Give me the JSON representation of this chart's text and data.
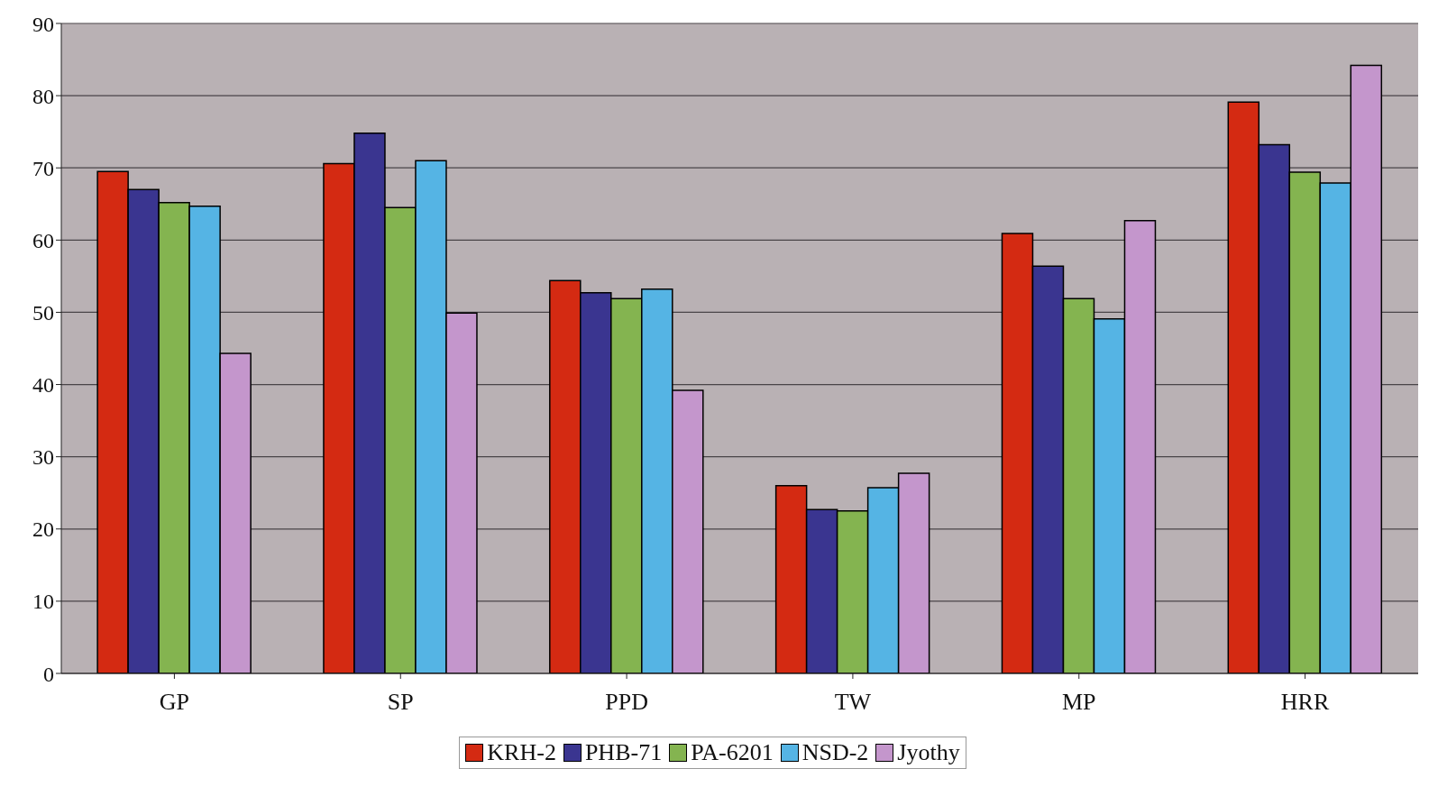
{
  "chart_data": {
    "type": "bar",
    "categories": [
      "GP",
      "SP",
      "PPD",
      "TW",
      "MP",
      "HRR"
    ],
    "series": [
      {
        "name": "KRH-2",
        "color": "#d42a12",
        "values": [
          69.5,
          70.6,
          54.4,
          26.0,
          60.9,
          79.1
        ]
      },
      {
        "name": "PHB-71",
        "color": "#3a3590",
        "values": [
          67.0,
          74.8,
          52.7,
          22.7,
          56.4,
          73.2
        ]
      },
      {
        "name": "PA-6201",
        "color": "#84b450",
        "values": [
          65.2,
          64.5,
          51.9,
          22.5,
          51.9,
          69.4
        ]
      },
      {
        "name": "NSD-2",
        "color": "#55b4e4",
        "values": [
          64.7,
          71.0,
          53.2,
          25.7,
          49.1,
          67.9
        ]
      },
      {
        "name": "Jyothy",
        "color": "#c496cc",
        "values": [
          44.3,
          49.9,
          39.2,
          27.7,
          62.7,
          84.2
        ]
      }
    ],
    "ylim": [
      0,
      90
    ],
    "yticks": [
      0,
      10,
      20,
      30,
      40,
      50,
      60,
      70,
      80,
      90
    ],
    "grid": "y",
    "legend": "bottom"
  }
}
